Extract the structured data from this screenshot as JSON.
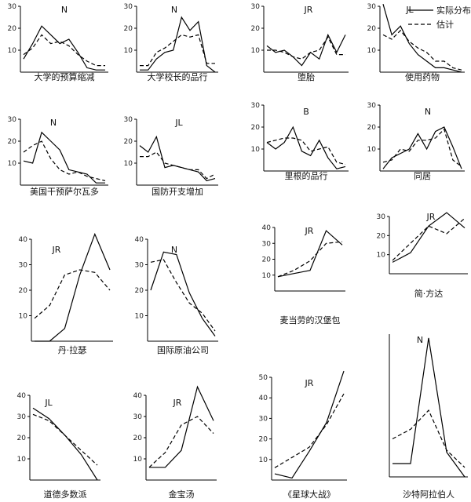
{
  "legend": {
    "actual": "实际分布",
    "estimate": "估计"
  },
  "chart_data": [
    {
      "type": "line",
      "tag": "N",
      "caption": "大学的预算缩减",
      "ylim": [
        0,
        30
      ],
      "yticks": [
        10,
        20,
        30
      ],
      "series": [
        {
          "name": "实际分布",
          "values": [
            6,
            13,
            21,
            17,
            13,
            15,
            9,
            2,
            1,
            1
          ]
        },
        {
          "name": "估计",
          "values": [
            8,
            11,
            17,
            13,
            14,
            12,
            8,
            5,
            3,
            3
          ]
        }
      ]
    },
    {
      "type": "line",
      "tag": "N",
      "caption": "大学校长的品行",
      "ylim": [
        0,
        30
      ],
      "yticks": [
        10,
        20,
        30
      ],
      "series": [
        {
          "name": "实际分布",
          "values": [
            1,
            1,
            6,
            9,
            10,
            25,
            19,
            23,
            3,
            0
          ]
        },
        {
          "name": "估计",
          "values": [
            3,
            3,
            9,
            11,
            14,
            17,
            16,
            17,
            4,
            4
          ]
        }
      ]
    },
    {
      "type": "line",
      "tag": "JR",
      "caption": "堕胎",
      "ylim": [
        0,
        30
      ],
      "yticks": [
        10,
        20,
        30
      ],
      "series": [
        {
          "name": "实际分布",
          "values": [
            12,
            9,
            10,
            7,
            3,
            9,
            6,
            17,
            9,
            17
          ]
        },
        {
          "name": "估计",
          "values": [
            10,
            10,
            9,
            7,
            6,
            9,
            10,
            16,
            8,
            8
          ]
        }
      ]
    },
    {
      "type": "line",
      "tag": "JL",
      "caption": "使用药物",
      "ylim": [
        0,
        30
      ],
      "yticks": [
        10,
        20,
        30
      ],
      "series": [
        {
          "name": "实际分布",
          "values": [
            31,
            17,
            21,
            13,
            8,
            5,
            2,
            2,
            1,
            0
          ]
        },
        {
          "name": "估计",
          "values": [
            17,
            15,
            19,
            14,
            11,
            9,
            5,
            5,
            2,
            1
          ]
        }
      ]
    },
    {
      "type": "line",
      "tag": "N",
      "caption": "美国干预萨尔瓦多",
      "ylim": [
        0,
        30
      ],
      "yticks": [
        10,
        20,
        30
      ],
      "series": [
        {
          "name": "实际分布",
          "values": [
            11,
            10,
            24,
            20,
            16,
            7,
            6,
            5,
            1,
            1
          ]
        },
        {
          "name": "估计",
          "values": [
            15,
            18,
            20,
            12,
            7,
            5,
            6,
            4,
            3,
            2
          ]
        }
      ]
    },
    {
      "type": "line",
      "tag": "JL",
      "caption": "国防开支增加",
      "ylim": [
        0,
        30
      ],
      "yticks": [
        10,
        20,
        30
      ],
      "series": [
        {
          "name": "实际分布",
          "values": [
            18,
            15,
            22,
            8,
            9,
            8,
            7,
            6,
            2,
            3
          ]
        },
        {
          "name": "估计",
          "values": [
            13,
            13,
            15,
            10,
            9,
            8,
            7,
            7,
            3,
            5
          ]
        }
      ]
    },
    {
      "type": "line",
      "tag": "B",
      "caption": "里根的品行",
      "ylim": [
        0,
        30
      ],
      "yticks": [
        10,
        20,
        30
      ],
      "series": [
        {
          "name": "实际分布",
          "values": [
            13,
            10,
            13,
            20,
            9,
            7,
            14,
            6,
            1,
            2
          ]
        },
        {
          "name": "估计",
          "values": [
            13,
            14,
            15,
            15,
            14,
            9,
            10,
            11,
            4,
            3
          ]
        }
      ]
    },
    {
      "type": "line",
      "tag": "N",
      "caption": "同居",
      "ylim": [
        0,
        30
      ],
      "yticks": [
        10,
        20,
        30
      ],
      "series": [
        {
          "name": "实际分布",
          "values": [
            1,
            6,
            8,
            10,
            17,
            10,
            18,
            20,
            11,
            1
          ]
        },
        {
          "name": "估计",
          "values": [
            4,
            5,
            10,
            9,
            14,
            14,
            15,
            19,
            5,
            2
          ]
        }
      ]
    },
    {
      "type": "line",
      "tag": "JR",
      "caption": "丹·拉瑟",
      "ylim": [
        0,
        40
      ],
      "yticks": [
        10,
        20,
        30,
        40
      ],
      "series": [
        {
          "name": "实际分布",
          "values": [
            0,
            0,
            5,
            26,
            42,
            28
          ]
        },
        {
          "name": "估计",
          "values": [
            9,
            14,
            26,
            28,
            27,
            20
          ]
        }
      ]
    },
    {
      "type": "line",
      "tag": "N",
      "caption": "国际原油公司",
      "ylim": [
        0,
        40
      ],
      "yticks": [
        10,
        20,
        30,
        40
      ],
      "series": [
        {
          "name": "实际分布",
          "values": [
            20,
            35,
            34,
            19,
            9,
            2
          ]
        },
        {
          "name": "估计",
          "values": [
            31,
            32,
            23,
            15,
            11,
            4
          ]
        }
      ]
    },
    {
      "type": "line",
      "tag": "JR",
      "caption": "麦当劳的汉堡包",
      "ylim": [
        0,
        40
      ],
      "yticks": [
        10,
        20,
        30,
        40
      ],
      "series": [
        {
          "name": "实际分布",
          "values": [
            9,
            11,
            13,
            38,
            29
          ]
        },
        {
          "name": "估计",
          "values": [
            9,
            13,
            19,
            30,
            31
          ]
        }
      ]
    },
    {
      "type": "line",
      "tag": "JR",
      "caption": "简·方达",
      "ylim": [
        0,
        30
      ],
      "yticks": [
        10,
        20,
        30
      ],
      "series": [
        {
          "name": "实际分布",
          "values": [
            6,
            11,
            25,
            32,
            24
          ]
        },
        {
          "name": "估计",
          "values": [
            7,
            16,
            25,
            21,
            29
          ]
        }
      ]
    },
    {
      "type": "line",
      "tag": "JL",
      "caption": "道德多数派",
      "ylim": [
        0,
        40
      ],
      "yticks": [
        10,
        20,
        30,
        40
      ],
      "series": [
        {
          "name": "实际分布",
          "values": [
            34,
            29,
            21,
            12,
            0
          ]
        },
        {
          "name": "估计",
          "values": [
            31,
            28,
            21,
            14,
            7
          ]
        }
      ]
    },
    {
      "type": "line",
      "tag": "JR",
      "caption": "金宝汤",
      "ylim": [
        0,
        40
      ],
      "yticks": [
        10,
        20,
        30,
        40
      ],
      "series": [
        {
          "name": "实际分布",
          "values": [
            6,
            6,
            14,
            44,
            28
          ]
        },
        {
          "name": "估计",
          "values": [
            6,
            13,
            26,
            30,
            22
          ]
        }
      ]
    },
    {
      "type": "line",
      "tag": "JR",
      "caption": "《星球大战》",
      "ylim": [
        0,
        50
      ],
      "yticks": [
        10,
        20,
        30,
        40,
        50
      ],
      "series": [
        {
          "name": "实际分布",
          "values": [
            3,
            1,
            14,
            28,
            53
          ]
        },
        {
          "name": "估计",
          "values": [
            6,
            11,
            16,
            27,
            42
          ]
        }
      ]
    },
    {
      "type": "line",
      "tag": "N",
      "caption": "沙特阿拉伯人",
      "ylim": [
        0,
        75
      ],
      "yticks": [],
      "series": [
        {
          "name": "实际分布",
          "values": [
            7,
            7,
            73,
            13,
            0
          ]
        },
        {
          "name": "估计",
          "values": [
            20,
            25,
            35,
            14,
            5
          ]
        }
      ]
    }
  ]
}
